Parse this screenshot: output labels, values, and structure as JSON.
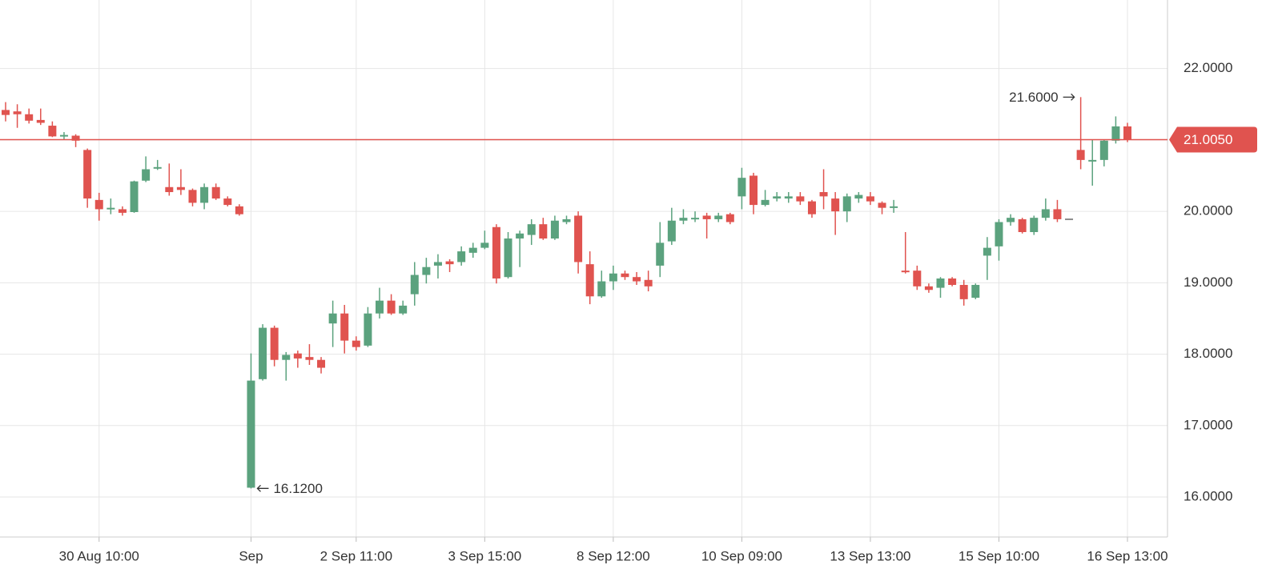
{
  "chart_data": {
    "type": "candlestick",
    "categories": [
      null,
      null,
      null,
      null,
      null,
      null,
      null,
      null,
      "30 Aug 10:00",
      null,
      null,
      null,
      null,
      null,
      null,
      null,
      null,
      null,
      null,
      null,
      null,
      "Sep",
      null,
      null,
      null,
      null,
      null,
      null,
      null,
      null,
      "2 Sep 11:00",
      null,
      null,
      null,
      null,
      null,
      null,
      null,
      null,
      null,
      null,
      "3 Sep 15:00",
      null,
      null,
      null,
      null,
      null,
      null,
      null,
      null,
      null,
      null,
      "8 Sep 12:00",
      null,
      null,
      null,
      null,
      null,
      null,
      null,
      null,
      null,
      null,
      "10 Sep 09:00",
      null,
      null,
      null,
      null,
      null,
      null,
      null,
      null,
      null,
      null,
      "13 Sep 13:00",
      null,
      null,
      null,
      null,
      null,
      null,
      null,
      null,
      null,
      null,
      "15 Sep 10:00",
      null,
      null,
      null,
      null,
      null,
      null,
      null,
      null,
      null,
      null,
      "16 Sep 13:00"
    ],
    "open": [
      21.42,
      21.4,
      21.36,
      21.28,
      21.2,
      21.05,
      21.06,
      20.86,
      20.16,
      20.03,
      20.03,
      19.99,
      20.43,
      20.6,
      20.34,
      20.34,
      20.3,
      20.12,
      20.34,
      20.18,
      20.07,
      16.13,
      17.65,
      18.37,
      17.92,
      18.01,
      17.96,
      17.92,
      18.43,
      18.57,
      18.19,
      18.12,
      18.57,
      18.75,
      18.57,
      18.84,
      19.11,
      19.24,
      19.3,
      19.29,
      19.42,
      19.49,
      19.78,
      19.08,
      19.62,
      19.67,
      19.82,
      19.62,
      19.85,
      19.94,
      19.26,
      18.81,
      19.02,
      19.13,
      19.08,
      19.04,
      19.24,
      19.58,
      19.87,
      19.89,
      19.94,
      19.89,
      19.96,
      20.21,
      20.5,
      20.09,
      20.18,
      20.18,
      20.21,
      20.14,
      20.27,
      20.18,
      20.0,
      20.18,
      20.21,
      20.12,
      20.05,
      19.17,
      19.17,
      18.95,
      18.93,
      19.06,
      18.97,
      18.79,
      19.38,
      19.51,
      19.85,
      19.89,
      19.71,
      19.91,
      20.03,
      19.9,
      20.86,
      20.7,
      20.72,
      20.99,
      21.19
    ],
    "high": [
      21.53,
      21.5,
      21.44,
      21.44,
      21.26,
      21.11,
      21.08,
      20.88,
      20.26,
      20.18,
      20.07,
      20.43,
      20.77,
      20.72,
      20.67,
      20.59,
      20.32,
      20.39,
      20.39,
      20.21,
      20.1,
      18.01,
      18.42,
      18.4,
      18.03,
      18.05,
      18.14,
      17.96,
      18.75,
      18.69,
      18.25,
      18.66,
      18.93,
      18.84,
      18.75,
      19.29,
      19.35,
      19.4,
      19.33,
      19.51,
      19.56,
      19.73,
      19.82,
      19.71,
      19.73,
      19.89,
      19.91,
      19.94,
      19.94,
      20.0,
      19.44,
      19.17,
      19.24,
      19.17,
      19.15,
      19.17,
      19.85,
      20.05,
      20.03,
      20.0,
      19.98,
      19.98,
      19.98,
      20.61,
      20.54,
      20.3,
      20.27,
      20.27,
      20.27,
      20.16,
      20.59,
      20.27,
      20.25,
      20.27,
      20.27,
      20.14,
      20.16,
      19.71,
      19.24,
      18.99,
      19.08,
      19.08,
      19.04,
      18.99,
      19.64,
      19.89,
      19.96,
      19.91,
      19.94,
      20.18,
      20.16,
      19.9,
      21.6,
      21.0,
      21.01,
      21.33,
      21.24
    ],
    "low": [
      21.26,
      21.17,
      21.23,
      21.21,
      21.04,
      21.0,
      20.9,
      20.05,
      19.87,
      19.96,
      19.94,
      19.98,
      20.41,
      20.58,
      20.22,
      20.23,
      20.07,
      20.03,
      20.16,
      20.07,
      19.94,
      16.12,
      17.63,
      17.83,
      17.63,
      17.81,
      17.85,
      17.73,
      18.1,
      18.01,
      18.05,
      18.1,
      18.5,
      18.55,
      18.55,
      18.68,
      18.99,
      19.06,
      19.15,
      19.24,
      19.35,
      19.47,
      18.99,
      19.06,
      19.22,
      19.53,
      19.6,
      19.6,
      19.82,
      19.13,
      18.7,
      18.79,
      18.9,
      19.04,
      18.97,
      18.88,
      19.08,
      19.53,
      19.82,
      19.85,
      19.62,
      19.85,
      19.82,
      20.03,
      19.96,
      20.07,
      20.14,
      20.12,
      20.09,
      19.91,
      20.03,
      19.67,
      19.85,
      20.12,
      20.09,
      19.96,
      19.98,
      19.13,
      18.9,
      18.86,
      18.79,
      18.95,
      18.68,
      18.77,
      19.04,
      19.31,
      19.8,
      19.69,
      19.67,
      19.87,
      19.85,
      19.9,
      20.59,
      20.36,
      20.63,
      20.95,
      20.97
    ],
    "close": [
      21.35,
      21.36,
      21.27,
      21.24,
      21.05,
      21.07,
      20.99,
      20.18,
      20.03,
      20.05,
      19.98,
      20.42,
      20.59,
      20.62,
      20.27,
      20.3,
      20.12,
      20.34,
      20.18,
      20.09,
      19.96,
      17.63,
      18.37,
      17.92,
      17.99,
      17.94,
      17.92,
      17.81,
      18.57,
      18.19,
      18.1,
      18.57,
      18.75,
      18.57,
      18.68,
      19.11,
      19.22,
      19.29,
      19.26,
      19.44,
      19.49,
      19.56,
      19.06,
      19.62,
      19.69,
      19.82,
      19.62,
      19.87,
      19.89,
      19.29,
      18.81,
      19.02,
      19.13,
      19.08,
      19.02,
      18.95,
      19.56,
      19.87,
      19.91,
      19.91,
      19.89,
      19.94,
      19.85,
      20.47,
      20.09,
      20.16,
      20.21,
      20.21,
      20.14,
      19.96,
      20.21,
      20.0,
      20.21,
      20.23,
      20.14,
      20.05,
      20.07,
      19.15,
      18.95,
      18.9,
      19.06,
      18.97,
      18.77,
      18.97,
      19.49,
      19.85,
      19.91,
      19.71,
      19.91,
      20.03,
      19.89,
      19.9,
      20.72,
      20.72,
      20.99,
      21.19,
      21.005
    ],
    "up_color": "#5ba27e",
    "down_color": "#e0534f",
    "flat_color": "#8c8c8c",
    "ylim": [
      15.44,
      22.96
    ],
    "yticks": [
      {
        "value": 16,
        "label": "16.0000"
      },
      {
        "value": 17,
        "label": "17.0000"
      },
      {
        "value": 18,
        "label": "18.0000"
      },
      {
        "value": 19,
        "label": "19.0000"
      },
      {
        "value": 20,
        "label": "20.0000"
      },
      {
        "value": 21,
        "label": "21.0000"
      },
      {
        "value": 22,
        "label": "22.0000"
      }
    ],
    "grid": true,
    "last_price": {
      "value": 21.005,
      "label": "21.0050",
      "color": "#e0534f"
    },
    "annotations": [
      {
        "label": "21.6000",
        "value": 21.6,
        "at": "high"
      },
      {
        "label": "16.1200",
        "value": 16.12,
        "at": "low"
      }
    ]
  }
}
